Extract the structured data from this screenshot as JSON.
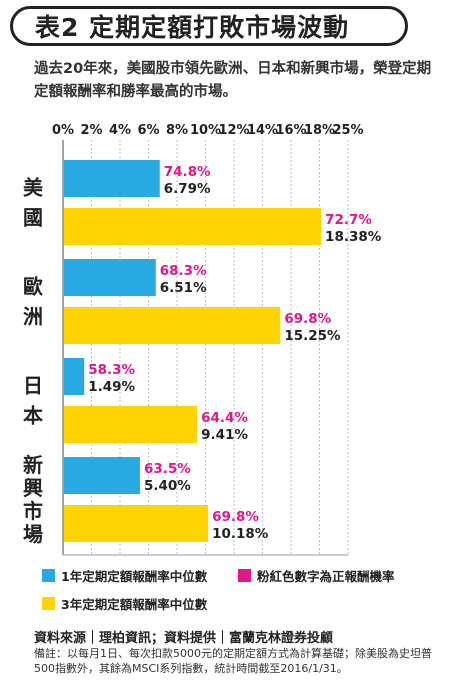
{
  "title": "表2  定期定額打敗市場波動",
  "subtitle": "過去20年來，美國股市領先歐洲、日本和新興市場，榮登定期定額報酬率和勝率最高的市場。",
  "chart_data": {
    "type": "bar",
    "orientation": "horizontal",
    "x_ticks": [
      "0%",
      "2%",
      "4%",
      "6%",
      "8%",
      "10%",
      "12%",
      "14%",
      "16%",
      "18%",
      "25%"
    ],
    "x_tick_values": [
      0,
      2,
      4,
      6,
      8,
      10,
      12,
      14,
      16,
      18,
      25
    ],
    "categories": [
      "美國",
      "歐洲",
      "日本",
      "新興市場"
    ],
    "category_labels": [
      [
        "美",
        "國"
      ],
      [
        "歐",
        "洲"
      ],
      [
        "日",
        "本"
      ],
      [
        "新",
        "興",
        "市",
        "場"
      ]
    ],
    "series": [
      {
        "name": "1年定期定額報酬率中位數",
        "color": "#29a9e1",
        "values": [
          6.79,
          6.51,
          1.49,
          5.4
        ],
        "value_labels": [
          "6.79%",
          "6.51%",
          "1.49%",
          "5.40%"
        ],
        "positive_rates": [
          "74.8%",
          "68.3%",
          "58.3%",
          "63.5%"
        ]
      },
      {
        "name": "3年定期定額報酬率中位數",
        "color": "#ffd400",
        "values": [
          18.38,
          15.25,
          9.41,
          10.18
        ],
        "value_labels": [
          "18.38%",
          "15.25%",
          "9.41%",
          "10.18%"
        ],
        "positive_rates": [
          "72.7%",
          "69.8%",
          "64.4%",
          "69.8%"
        ]
      }
    ],
    "rate_color": "#e2168a",
    "grid": true,
    "legend_position": "bottom"
  },
  "legend": {
    "one_year": "1年定期定額報酬率中位數",
    "pink": "粉紅色數字為正報酬機率",
    "three_year": "3年定期定額報酬率中位數",
    "one_year_color": "#29a9e1",
    "pink_color": "#e2168a",
    "three_year_color": "#ffd400"
  },
  "source": "資料來源｜理柏資訊；資料提供｜富蘭克林證券投顧",
  "note": "備註：以每月1日、每次扣款5000元的定期定額方式為計算基礎；除美股為史坦普500指數外，其餘為MSCI系列指數，統計時間截至2016/1/31。"
}
